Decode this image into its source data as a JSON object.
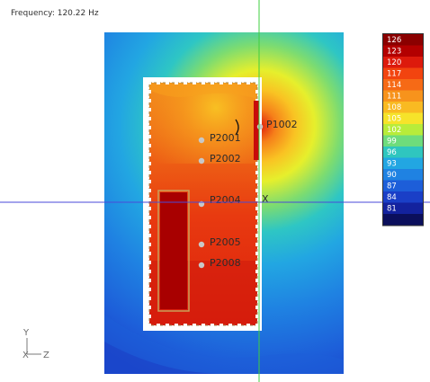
{
  "header": {
    "frequency_label": "Frequency: 120.22 Hz"
  },
  "legend": {
    "entries": [
      {
        "value": "126",
        "color": "#8b0000"
      },
      {
        "value": "123",
        "color": "#b30000"
      },
      {
        "value": "120",
        "color": "#dd1a0c"
      },
      {
        "value": "117",
        "color": "#f2440f"
      },
      {
        "value": "114",
        "color": "#f66a16"
      },
      {
        "value": "111",
        "color": "#f7931c"
      },
      {
        "value": "108",
        "color": "#f9ba22"
      },
      {
        "value": "105",
        "color": "#f6e32a"
      },
      {
        "value": "102",
        "color": "#b8ec3a"
      },
      {
        "value": "99",
        "color": "#6edc7c"
      },
      {
        "value": "96",
        "color": "#2fc6bf"
      },
      {
        "value": "93",
        "color": "#22a6e2"
      },
      {
        "value": "90",
        "color": "#1f82e2"
      },
      {
        "value": "87",
        "color": "#1d5ed9"
      },
      {
        "value": "84",
        "color": "#1a3fc7"
      },
      {
        "value": "81",
        "color": "#13229e"
      },
      {
        "value": "",
        "color": "#0b0f5c"
      }
    ]
  },
  "probes": [
    {
      "label": "P1002"
    },
    {
      "label": "P2001"
    },
    {
      "label": "P2002"
    },
    {
      "label": "P2004"
    },
    {
      "label": "P2005"
    },
    {
      "label": "P2008"
    }
  ],
  "source_marker": "X",
  "axes": {
    "y": "Y",
    "x": "X",
    "z": "Z"
  }
}
